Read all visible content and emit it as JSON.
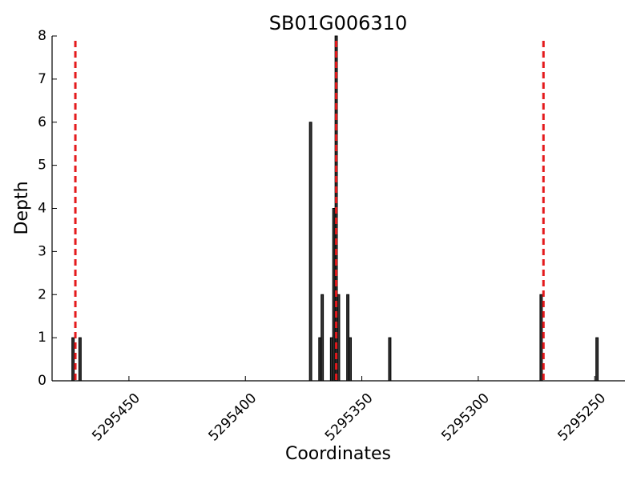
{
  "chart_data": {
    "type": "bar",
    "title": "SB01G006310",
    "x_label": "Coordinates",
    "y_label": "Depth",
    "x": [
      5295474,
      5295471,
      5295372,
      5295368,
      5295367,
      5295363,
      5295362,
      5295361,
      5295360,
      5295356,
      5295355,
      5295338,
      5295273,
      5295249
    ],
    "values": [
      1,
      1,
      6,
      1,
      2,
      1,
      4,
      8,
      2,
      2,
      1,
      1,
      2,
      1
    ],
    "color": "#333333",
    "vlines": [
      5295473,
      5295361,
      5295272
    ],
    "vline_color": "#e41a1c",
    "xlim": [
      5295483,
      5295237
    ],
    "xticks": [
      5295450,
      5295400,
      5295350,
      5295300,
      5295250
    ],
    "ylim": [
      0,
      8
    ],
    "yticks": [
      0,
      1,
      2,
      3,
      4,
      5,
      6,
      7,
      8
    ],
    "grid": false
  }
}
